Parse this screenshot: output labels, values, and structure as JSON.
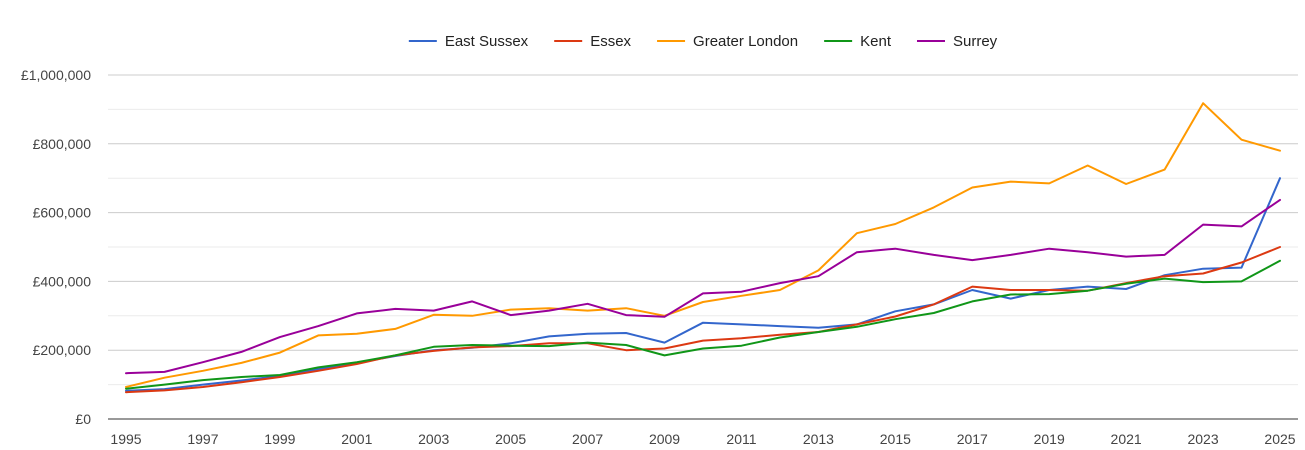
{
  "chart_data": {
    "type": "line",
    "title": "",
    "xlabel": "",
    "ylabel": "",
    "legend_position": "top",
    "grid": true,
    "x": [
      1995,
      1996,
      1997,
      1998,
      1999,
      2000,
      2001,
      2002,
      2003,
      2004,
      2005,
      2006,
      2007,
      2008,
      2009,
      2010,
      2011,
      2012,
      2013,
      2014,
      2015,
      2016,
      2017,
      2018,
      2019,
      2020,
      2021,
      2022,
      2023,
      2024,
      2025
    ],
    "x_ticks": [
      "1995",
      "1997",
      "1999",
      "2001",
      "2003",
      "2005",
      "2007",
      "2009",
      "2011",
      "2013",
      "2015",
      "2017",
      "2019",
      "2021",
      "2023",
      "2025"
    ],
    "ylim": [
      0,
      1000000
    ],
    "y_ticks": [
      {
        "value": 0,
        "label": "£0"
      },
      {
        "value": 200000,
        "label": "£200,000"
      },
      {
        "value": 400000,
        "label": "£400,000"
      },
      {
        "value": 600000,
        "label": "£600,000"
      },
      {
        "value": 800000,
        "label": "£800,000"
      },
      {
        "value": 1000000,
        "label": "£1,000,000"
      }
    ],
    "series": [
      {
        "name": "East Sussex",
        "color": "#3366cc",
        "values": [
          82000,
          87000,
          100000,
          112000,
          125000,
          145000,
          163000,
          183000,
          200000,
          207000,
          220000,
          240000,
          248000,
          250000,
          222000,
          280000,
          275000,
          270000,
          265000,
          275000,
          313000,
          333000,
          375000,
          350000,
          375000,
          385000,
          378000,
          418000,
          437000,
          440000,
          700000
        ]
      },
      {
        "name": "Essex",
        "color": "#dc3912",
        "values": [
          78000,
          83000,
          93000,
          107000,
          122000,
          140000,
          160000,
          185000,
          198000,
          208000,
          212000,
          220000,
          220000,
          200000,
          205000,
          228000,
          235000,
          245000,
          253000,
          275000,
          298000,
          333000,
          385000,
          375000,
          375000,
          373000,
          395000,
          415000,
          423000,
          455000,
          500000
        ]
      },
      {
        "name": "Greater London",
        "color": "#ff9900",
        "values": [
          93000,
          120000,
          140000,
          163000,
          193000,
          243000,
          248000,
          262000,
          303000,
          300000,
          318000,
          322000,
          315000,
          322000,
          300000,
          340000,
          358000,
          375000,
          432000,
          540000,
          567000,
          615000,
          673000,
          690000,
          685000,
          737000,
          683000,
          725000,
          918000,
          812000,
          780000
        ]
      },
      {
        "name": "Kent",
        "color": "#109618",
        "values": [
          88000,
          100000,
          113000,
          122000,
          128000,
          150000,
          165000,
          185000,
          210000,
          215000,
          213000,
          212000,
          222000,
          215000,
          185000,
          205000,
          213000,
          237000,
          253000,
          268000,
          290000,
          308000,
          342000,
          362000,
          363000,
          373000,
          393000,
          408000,
          398000,
          400000,
          460000
        ]
      },
      {
        "name": "Surrey",
        "color": "#990099",
        "values": [
          133000,
          137000,
          165000,
          195000,
          238000,
          270000,
          307000,
          320000,
          315000,
          342000,
          302000,
          315000,
          335000,
          302000,
          297000,
          365000,
          370000,
          395000,
          415000,
          485000,
          495000,
          477000,
          462000,
          477000,
          495000,
          485000,
          472000,
          477000,
          565000,
          560000,
          637000
        ]
      }
    ]
  }
}
